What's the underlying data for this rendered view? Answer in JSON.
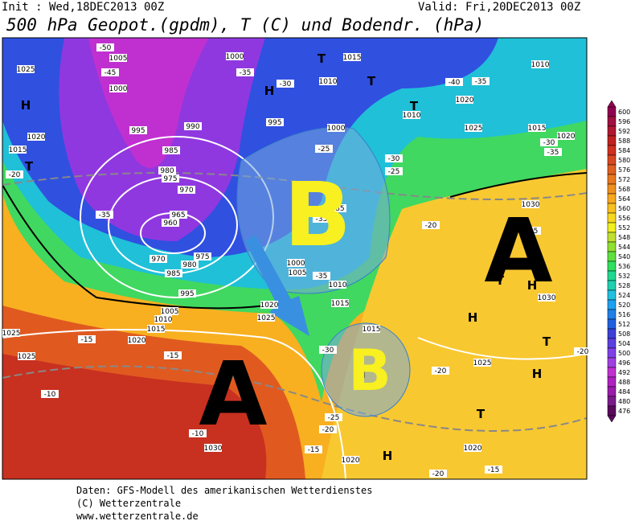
{
  "header": {
    "init": "Init : Wed,18DEC2013 00Z",
    "valid": "Valid: Fri,20DEC2013 00Z",
    "title": "500 hPa Geopot.(gpdm), T (C) und Bodendr. (hPa)"
  },
  "colorbar": {
    "levels": [
      476,
      480,
      484,
      488,
      492,
      496,
      500,
      504,
      508,
      512,
      516,
      520,
      524,
      528,
      532,
      536,
      540,
      544,
      548,
      552,
      556,
      560,
      564,
      568,
      572,
      576,
      580,
      584,
      588,
      592,
      596,
      600
    ],
    "colors": [
      "#5a0a5a",
      "#7a1a8a",
      "#9a1aaa",
      "#b020c0",
      "#c030d0",
      "#a040e0",
      "#8040e8",
      "#5a40e0",
      "#3a40d8",
      "#2060e0",
      "#2080e8",
      "#20a0f0",
      "#20c0e0",
      "#20d0b0",
      "#20d890",
      "#30e060",
      "#60e040",
      "#90e030",
      "#c0e030",
      "#f0f020",
      "#f8d820",
      "#f8c020",
      "#f8a820",
      "#f09020",
      "#e87820",
      "#e06020",
      "#d84820",
      "#d03020",
      "#c02020",
      "#b01830",
      "#a01040",
      "#900050"
    ]
  },
  "map_labels": [
    "1005",
    "-50",
    "-45",
    "1000",
    "1025",
    "H",
    "1020",
    "1015",
    "T",
    "-20",
    "995",
    "990",
    "985",
    "980",
    "975",
    "970",
    "965",
    "960",
    "-35",
    "970",
    "975",
    "980",
    "985",
    "995",
    "1005",
    "1010",
    "1015",
    "1020",
    "1025",
    "1025",
    "-10",
    "-10",
    "1030",
    "1000",
    "H",
    "T",
    "1015",
    "T",
    "-35",
    "-30",
    "1010",
    "995",
    "1000",
    "T",
    "1010",
    "-40",
    "-35",
    "1010",
    "1020",
    "1025",
    "1015",
    "1020",
    "-30",
    "-35",
    "-25",
    "-30",
    "-25",
    "-20",
    "1030",
    "-25",
    "T",
    "H",
    "1030",
    "H",
    "T",
    "H",
    "-20",
    "1025",
    "-20",
    "T",
    "1020",
    "-15",
    "-20",
    "1020",
    "H",
    "T",
    "1015",
    "-30",
    "-25",
    "-20",
    "1020",
    "1025",
    "1015",
    "1010",
    "1000",
    "1005",
    "-35",
    "985",
    "-35",
    "-15",
    "-15",
    "-15"
  ],
  "pressure_systems": [
    "B",
    "A",
    "A",
    "B"
  ],
  "footer": [
    "Daten: GFS-Modell des amerikanischen Wetterdienstes",
    "(C) Wetterzentrale",
    "www.wetterzentrale.de"
  ]
}
